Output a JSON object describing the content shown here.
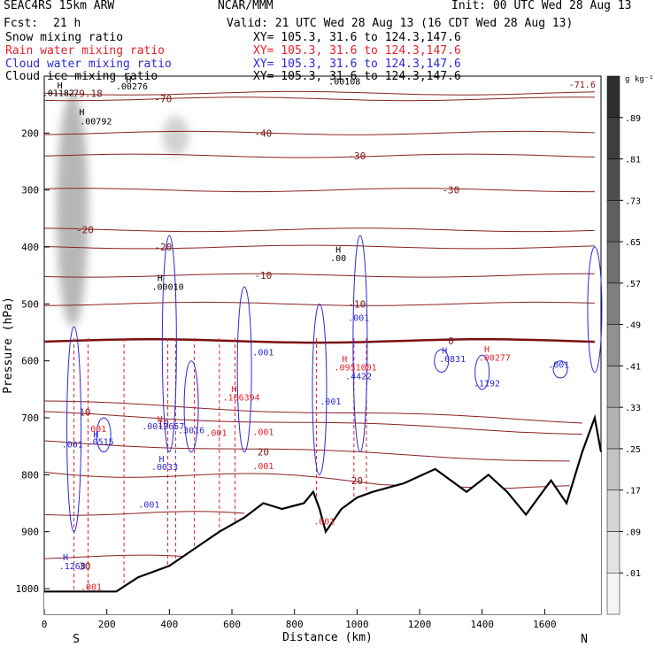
{
  "header": {
    "model": "SEAC4RS 15km ARW",
    "center": "NCAR/MMM",
    "init": "Init: 00 UTC Wed 28 Aug 13",
    "fcst_label": "Fcst:",
    "fcst_value": "21 h",
    "valid": "Valid: 21 UTC Wed 28 Aug 13 (16 CDT Wed 28 Aug 13)"
  },
  "legend": [
    {
      "label": "Snow mixing ratio",
      "xy": "XY= 105.3, 31.6 to 124.3,147.6",
      "color": "#000000"
    },
    {
      "label": "Rain water mixing ratio",
      "xy": "XY= 105.3, 31.6 to 124.3,147.6",
      "color": "#e8202a"
    },
    {
      "label": "Cloud water mixing ratio",
      "xy": "XY= 105.3, 31.6 to 124.3,147.6",
      "color": "#2a2ad8"
    },
    {
      "label": "Cloud ice mixing ratio",
      "xy": "XY= 105.3, 31.6 to 124.3,147.6",
      "color": "#000000"
    }
  ],
  "chart_data": {
    "type": "cross-section",
    "xlabel": "Distance (km)",
    "ylabel": "Pressure (hPa)",
    "xlim": [
      0,
      1780
    ],
    "ylim": [
      100,
      1045
    ],
    "x_ticks": [
      0,
      200,
      400,
      600,
      800,
      1000,
      1200,
      1400,
      1600
    ],
    "x_tick_labels": [
      "0",
      "200",
      "400",
      "600",
      "800",
      "1000",
      "1200",
      "1400",
      "1600"
    ],
    "y_ticks": [
      200,
      300,
      400,
      500,
      600,
      700,
      800,
      900,
      1000
    ],
    "y_tick_labels": [
      "200",
      "300",
      "400",
      "500",
      "600",
      "700",
      "800",
      "900",
      "1000"
    ],
    "endpoint_labels": {
      "left": "S",
      "right": "N"
    },
    "colorbar": {
      "unit": "g kg⁻¹",
      "ticks": [
        ".01",
        ".09",
        ".17",
        ".25",
        ".33",
        ".41",
        ".49",
        ".57",
        ".65",
        ".73",
        ".81",
        ".89"
      ]
    },
    "isotherms": [
      {
        "p": 130,
        "label": "-79.18"
      },
      {
        "p": 140,
        "label": "-70"
      },
      {
        "p": 200,
        "label": "-40"
      },
      {
        "p": 240,
        "label": "-30"
      },
      {
        "p": 300,
        "label": "-30"
      },
      {
        "p": 370,
        "label": "-20"
      },
      {
        "p": 400,
        "label": "-20"
      },
      {
        "p": 450,
        "label": "-10"
      },
      {
        "p": 500,
        "label": "-10"
      },
      {
        "p": 565,
        "label": "0"
      },
      {
        "p": 690,
        "label": "10"
      },
      {
        "p": 710,
        "label": "10"
      },
      {
        "p": 760,
        "label": "20"
      },
      {
        "p": 810,
        "label": "20"
      },
      {
        "p": 880,
        "label": "30"
      },
      {
        "p": 960,
        "label": "30"
      }
    ],
    "terrain": [
      [
        0,
        1005
      ],
      [
        100,
        1005
      ],
      [
        230,
        1005
      ],
      [
        300,
        980
      ],
      [
        400,
        960
      ],
      [
        480,
        930
      ],
      [
        560,
        900
      ],
      [
        640,
        875
      ],
      [
        700,
        850
      ],
      [
        760,
        860
      ],
      [
        830,
        850
      ],
      [
        860,
        830
      ],
      [
        880,
        860
      ],
      [
        900,
        900
      ],
      [
        950,
        860
      ],
      [
        1000,
        840
      ],
      [
        1050,
        830
      ],
      [
        1150,
        815
      ],
      [
        1250,
        790
      ],
      [
        1350,
        830
      ],
      [
        1420,
        800
      ],
      [
        1480,
        830
      ],
      [
        1540,
        870
      ],
      [
        1580,
        840
      ],
      [
        1620,
        810
      ],
      [
        1670,
        850
      ],
      [
        1720,
        760
      ],
      [
        1760,
        700
      ],
      [
        1780,
        760
      ]
    ],
    "snow_plumes": [
      {
        "x": 90,
        "p_top": 130,
        "p_bottom": 540,
        "strength": 0.8
      },
      {
        "x": 420,
        "p_top": 170,
        "p_bottom": 240,
        "strength": 0.5
      }
    ],
    "contour_labels": [
      {
        "x": 45,
        "p": 135,
        "text": ".01182",
        "color": "#000000"
      },
      {
        "x": 280,
        "p": 123,
        "text": ".00276",
        "color": "#000000"
      },
      {
        "x": 165,
        "p": 185,
        "text": ".00792",
        "color": "#000000"
      },
      {
        "x": 960,
        "p": 115,
        "text": ".00108",
        "color": "#000000"
      },
      {
        "x": 1720,
        "p": 120,
        "text": "-71.6",
        "color": "#7a1414"
      },
      {
        "x": 940,
        "p": 425,
        "text": ".00",
        "color": "#000000"
      },
      {
        "x": 395,
        "p": 475,
        "text": ".00010",
        "color": "#000000"
      },
      {
        "x": 1005,
        "p": 530,
        "text": ".001",
        "color": "#2a2ad8"
      },
      {
        "x": 1305,
        "p": 602,
        "text": ".0831",
        "color": "#2a2ad8"
      },
      {
        "x": 1440,
        "p": 600,
        "text": ".00277",
        "color": "#e8202a"
      },
      {
        "x": 1415,
        "p": 645,
        "text": ".1192",
        "color": "#2a2ad8"
      },
      {
        "x": 1645,
        "p": 612,
        "text": ".001",
        "color": "#2a2ad8"
      },
      {
        "x": 700,
        "p": 590,
        "text": ".001",
        "color": "#2a2ad8"
      },
      {
        "x": 995,
        "p": 617,
        "text": ".0951001",
        "color": "#e8202a"
      },
      {
        "x": 1005,
        "p": 632,
        "text": ".4422",
        "color": "#2a2ad8"
      },
      {
        "x": 630,
        "p": 670,
        "text": ".166394",
        "color": "#e8202a"
      },
      {
        "x": 915,
        "p": 677,
        "text": ".001",
        "color": "#2a2ad8"
      },
      {
        "x": 380,
        "p": 720,
        "text": ".0012657",
        "color": "#2a2ad8"
      },
      {
        "x": 180,
        "p": 747,
        "text": ".0515",
        "color": "#2a2ad8"
      },
      {
        "x": 90,
        "p": 752,
        "text": ".001",
        "color": "#2a2ad8"
      },
      {
        "x": 470,
        "p": 727,
        "text": ".3016",
        "color": "#2a2ad8"
      },
      {
        "x": 550,
        "p": 732,
        "text": ".001",
        "color": "#e8202a"
      },
      {
        "x": 700,
        "p": 730,
        "text": ".001",
        "color": "#e8202a"
      },
      {
        "x": 385,
        "p": 792,
        "text": ".0033",
        "color": "#2a2ad8"
      },
      {
        "x": 700,
        "p": 790,
        "text": ".001",
        "color": "#e8202a"
      },
      {
        "x": 335,
        "p": 858,
        "text": ".001",
        "color": "#2a2ad8"
      },
      {
        "x": 90,
        "p": 966,
        "text": ".1268",
        "color": "#2a2ad8"
      },
      {
        "x": 150,
        "p": 1002,
        "text": ".001",
        "color": "#e8202a"
      },
      {
        "x": 895,
        "p": 887,
        "text": ".001",
        "color": "#e8202a"
      },
      {
        "x": 165,
        "p": 725,
        "text": ".001",
        "color": "#e8202a"
      }
    ],
    "h_markers": [
      {
        "x": 120,
        "p": 168,
        "color": "#000000"
      },
      {
        "x": 50,
        "p": 122,
        "color": "#000000"
      },
      {
        "x": 270,
        "p": 112,
        "color": "#000000"
      },
      {
        "x": 370,
        "p": 460,
        "color": "#000000"
      },
      {
        "x": 940,
        "p": 410,
        "color": "#000000"
      },
      {
        "x": 1280,
        "p": 587,
        "color": "#2a2ad8"
      },
      {
        "x": 1415,
        "p": 585,
        "color": "#e8202a"
      },
      {
        "x": 960,
        "p": 602,
        "color": "#e8202a"
      },
      {
        "x": 607,
        "p": 655,
        "color": "#e8202a"
      },
      {
        "x": 370,
        "p": 708,
        "color": "#e8202a"
      },
      {
        "x": 165,
        "p": 735,
        "color": "#2a2ad8"
      },
      {
        "x": 375,
        "p": 778,
        "color": "#2a2ad8"
      },
      {
        "x": 68,
        "p": 950,
        "color": "#2a2ad8"
      }
    ]
  }
}
